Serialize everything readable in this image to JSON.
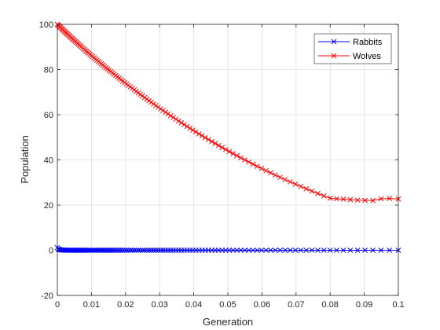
{
  "chart_data": {
    "type": "line",
    "xlabel": "Generation",
    "ylabel": "Population",
    "xlim": [
      0,
      0.1
    ],
    "ylim": [
      -20,
      100
    ],
    "xticks": [
      0,
      0.01,
      0.02,
      0.03,
      0.04,
      0.05,
      0.06,
      0.07,
      0.08,
      0.09,
      0.1
    ],
    "xtick_labels": [
      "0",
      "0.01",
      "0.02",
      "0.03",
      "0.04",
      "0.05",
      "0.06",
      "0.07",
      "0.08",
      "0.09",
      "0.1"
    ],
    "yticks": [
      -20,
      0,
      20,
      40,
      60,
      80,
      100
    ],
    "ytick_labels": [
      "-20",
      "0",
      "20",
      "40",
      "60",
      "80",
      "100"
    ],
    "grid": true,
    "legend_location": "top-right",
    "marker": "x",
    "series": [
      {
        "name": "Rabbits",
        "color": "#0000ff",
        "x": [
          0,
          0.00024,
          0.00048,
          0.00073,
          0.00098,
          0.00123,
          0.00149,
          0.00175,
          0.00202,
          0.00229,
          0.00257,
          0.00285,
          0.00314,
          0.00343,
          0.00373,
          0.00403,
          0.00434,
          0.00465,
          0.00497,
          0.00529,
          0.00562,
          0.00595,
          0.00629,
          0.00663,
          0.00698,
          0.00733,
          0.00769,
          0.00806,
          0.00843,
          0.0088,
          0.00918,
          0.00957,
          0.00996,
          0.01036,
          0.01077,
          0.01118,
          0.0116,
          0.01202,
          0.01245,
          0.01289,
          0.01333,
          0.01378,
          0.01424,
          0.0147,
          0.01517,
          0.01565,
          0.01613,
          0.01662,
          0.01712,
          0.01763,
          0.01814,
          0.01866,
          0.01919,
          0.01973,
          0.02027,
          0.02083,
          0.02139,
          0.02196,
          0.02254,
          0.02313,
          0.02373,
          0.02434,
          0.02496,
          0.02559,
          0.02623,
          0.02688,
          0.02754,
          0.02821,
          0.02889,
          0.02958,
          0.03029,
          0.031,
          0.03173,
          0.03247,
          0.03322,
          0.03399,
          0.03477,
          0.03556,
          0.03637,
          0.03719,
          0.03802,
          0.03887,
          0.03974,
          0.04062,
          0.04152,
          0.04244,
          0.04337,
          0.04432,
          0.04529,
          0.04628,
          0.04729,
          0.04832,
          0.04937,
          0.05044,
          0.05153,
          0.05265,
          0.05379,
          0.05496,
          0.05615,
          0.05737,
          0.05862,
          0.0599,
          0.06121,
          0.06255,
          0.06392,
          0.06533,
          0.06678,
          0.06827,
          0.0698,
          0.07137,
          0.07299,
          0.07466,
          0.07638,
          0.07816,
          0.08,
          0.0819,
          0.08387,
          0.08591,
          0.08803,
          0.09023,
          0.09252,
          0.0949,
          0.09738,
          0.1
        ],
        "y": [
          1.2,
          0.6,
          0.35,
          0.25,
          0.15,
          0.1,
          0.08,
          0.06,
          0.05,
          0.04,
          0.03,
          0.03,
          0.02,
          0.02,
          0.02,
          0.01,
          0.01,
          0.01,
          0.01,
          0.01,
          0.01,
          0.01,
          0.01,
          0.01,
          0.01,
          0.01,
          0.01,
          0.01,
          0.01,
          0.01,
          0,
          0,
          0,
          0,
          0,
          0,
          0,
          0,
          0,
          0,
          0,
          0,
          0,
          0,
          0,
          0,
          0,
          0,
          0,
          0,
          0,
          0,
          0,
          0,
          0,
          0,
          0,
          0,
          0,
          0,
          0,
          0,
          0,
          0,
          0,
          0,
          0,
          0,
          0,
          0,
          0,
          0,
          0,
          0,
          0,
          0,
          0,
          0,
          0,
          0,
          0,
          0,
          0,
          0,
          0,
          0,
          0,
          0,
          0,
          0,
          0,
          0,
          0,
          0,
          0,
          0,
          0,
          0,
          0,
          0,
          0,
          0,
          0,
          0,
          0,
          0,
          0,
          0,
          0,
          0,
          0,
          0,
          0,
          0,
          0,
          0,
          0,
          0,
          0,
          0,
          0,
          0,
          0,
          0
        ]
      },
      {
        "name": "Wolves",
        "color": "#ff0000",
        "x": [
          0,
          0.00024,
          0.00048,
          0.00073,
          0.00098,
          0.00123,
          0.00149,
          0.00175,
          0.00202,
          0.00229,
          0.00257,
          0.00285,
          0.00314,
          0.00343,
          0.00373,
          0.00403,
          0.00434,
          0.00465,
          0.00497,
          0.00529,
          0.00562,
          0.00595,
          0.00629,
          0.00663,
          0.00698,
          0.00733,
          0.00769,
          0.00806,
          0.00843,
          0.0088,
          0.00918,
          0.00957,
          0.00996,
          0.01036,
          0.01077,
          0.01118,
          0.0116,
          0.01202,
          0.01245,
          0.01289,
          0.01333,
          0.01378,
          0.01424,
          0.0147,
          0.01517,
          0.01565,
          0.01613,
          0.01662,
          0.01712,
          0.01763,
          0.01814,
          0.01866,
          0.01919,
          0.01973,
          0.02027,
          0.02083,
          0.02139,
          0.02196,
          0.02254,
          0.02313,
          0.02373,
          0.02434,
          0.02496,
          0.02559,
          0.02623,
          0.02688,
          0.02754,
          0.02821,
          0.02889,
          0.02958,
          0.03029,
          0.031,
          0.03173,
          0.03247,
          0.03322,
          0.03399,
          0.03477,
          0.03556,
          0.03637,
          0.03719,
          0.03802,
          0.03887,
          0.03974,
          0.04062,
          0.04152,
          0.04244,
          0.04337,
          0.04432,
          0.04529,
          0.04628,
          0.04729,
          0.04832,
          0.04937,
          0.05044,
          0.05153,
          0.05265,
          0.05379,
          0.05496,
          0.05615,
          0.05737,
          0.05862,
          0.0599,
          0.06121,
          0.06255,
          0.06392,
          0.06533,
          0.06678,
          0.06827,
          0.0698,
          0.07137,
          0.07299,
          0.07466,
          0.07638,
          0.07816,
          0.08,
          0.0819,
          0.08387,
          0.08591,
          0.08803,
          0.09023,
          0.09252,
          0.0949,
          0.09738,
          0.1
        ],
        "y": [
          100,
          99.64,
          99.28,
          98.91,
          98.54,
          98.17,
          97.79,
          97.41,
          97.02,
          96.62,
          96.22,
          95.82,
          95.41,
          95,
          94.58,
          94.16,
          93.73,
          93.3,
          92.87,
          92.43,
          91.98,
          91.53,
          91.08,
          90.62,
          90.15,
          89.68,
          89.2,
          88.72,
          88.23,
          87.74,
          87.25,
          86.75,
          86.24,
          85.72,
          85.2,
          84.68,
          84.15,
          83.61,
          83.07,
          82.52,
          81.97,
          81.41,
          80.84,
          80.27,
          79.7,
          79.12,
          78.53,
          77.94,
          77.34,
          76.73,
          76.12,
          75.51,
          74.88,
          74.25,
          73.62,
          72.98,
          72.33,
          71.68,
          71.02,
          70.35,
          69.68,
          69,
          68.31,
          67.62,
          66.92,
          66.22,
          65.51,
          64.79,
          64.06,
          63.33,
          62.59,
          61.85,
          61.09,
          60.34,
          59.57,
          58.8,
          58.02,
          57.23,
          56.44,
          55.64,
          54.83,
          54.02,
          53.19,
          52.37,
          51.53,
          50.69,
          49.84,
          48.98,
          48.12,
          47.25,
          46.37,
          45.48,
          44.59,
          43.69,
          42.78,
          41.86,
          40.94,
          40.01,
          39.07,
          38.13,
          37.17,
          36.21,
          35.24,
          34.27,
          33.28,
          32.29,
          31.29,
          30.28,
          29.27,
          28.25,
          27.22,
          26.18,
          25.14,
          24.09,
          23.03,
          22.8,
          22.6,
          22.4,
          22.2,
          22.1,
          22.0,
          22.8,
          22.9,
          22.7
        ]
      }
    ]
  }
}
